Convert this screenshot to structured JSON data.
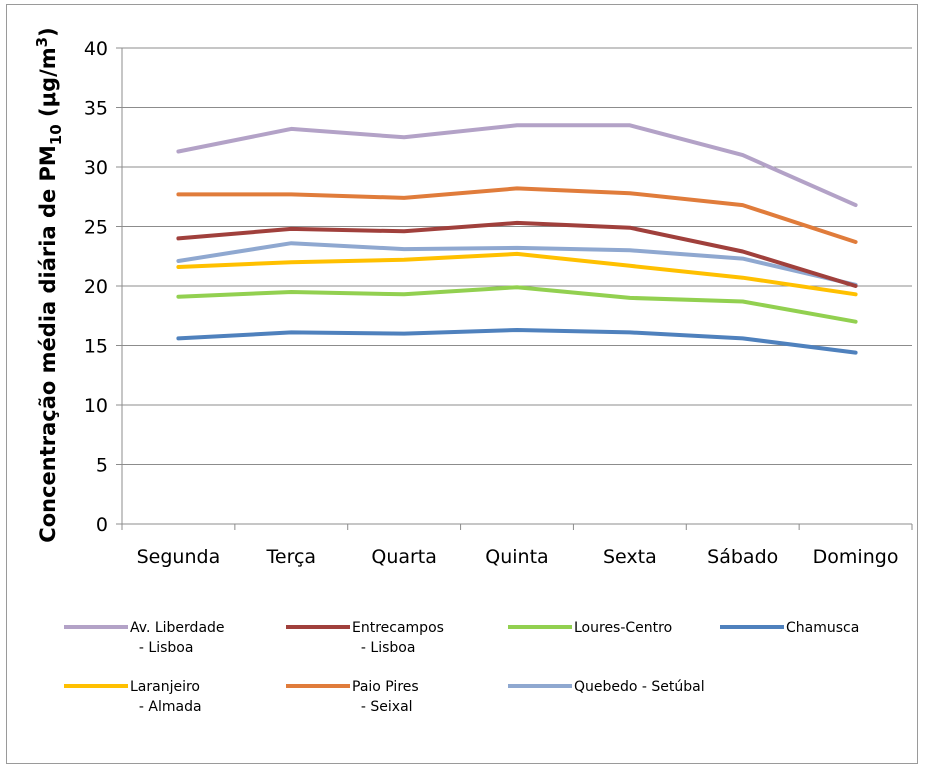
{
  "chart_data": {
    "type": "line",
    "categories": [
      "Segunda",
      "Terça",
      "Quarta",
      "Quinta",
      "Sexta",
      "Sábado",
      "Domingo"
    ],
    "ylabel": {
      "prefix": "Concentração média diária de PM",
      "sub": "10",
      "unit_open": " (μg/m",
      "sup": "3",
      "unit_close": ")"
    },
    "ylim": [
      0,
      40
    ],
    "yticks": [
      "0",
      "5",
      "10",
      "15",
      "20",
      "25",
      "30",
      "35",
      "40"
    ],
    "grid": true,
    "legend_position": "bottom",
    "series": [
      {
        "name": "Av. Liberdade\n - Lisboa",
        "color": "#b3a2c7",
        "values": [
          31.3,
          33.2,
          32.5,
          33.5,
          33.5,
          31.0,
          26.8
        ]
      },
      {
        "name": "Entrecampos\n - Lisboa",
        "color": "#a0403c",
        "values": [
          24.0,
          24.8,
          24.6,
          25.3,
          24.9,
          22.9,
          20.0
        ]
      },
      {
        "name": "Loures-Centro",
        "color": "#92d050",
        "values": [
          19.1,
          19.5,
          19.3,
          19.9,
          19.0,
          18.7,
          17.0
        ]
      },
      {
        "name": "Chamusca",
        "color": "#4f81bd",
        "values": [
          15.6,
          16.1,
          16.0,
          16.3,
          16.1,
          15.6,
          14.4
        ]
      },
      {
        "name": "Laranjeiro\n - Almada",
        "color": "#ffc000",
        "values": [
          21.6,
          22.0,
          22.2,
          22.7,
          21.7,
          20.7,
          19.3
        ]
      },
      {
        "name": "Paio Pires\n - Seixal",
        "color": "#e07c3b",
        "values": [
          27.7,
          27.7,
          27.4,
          28.2,
          27.8,
          26.8,
          23.7
        ]
      },
      {
        "name": "Quebedo - Setúbal",
        "color": "#8fa8d0",
        "values": [
          22.1,
          23.6,
          23.1,
          23.2,
          23.0,
          22.3,
          20.1
        ]
      }
    ]
  }
}
